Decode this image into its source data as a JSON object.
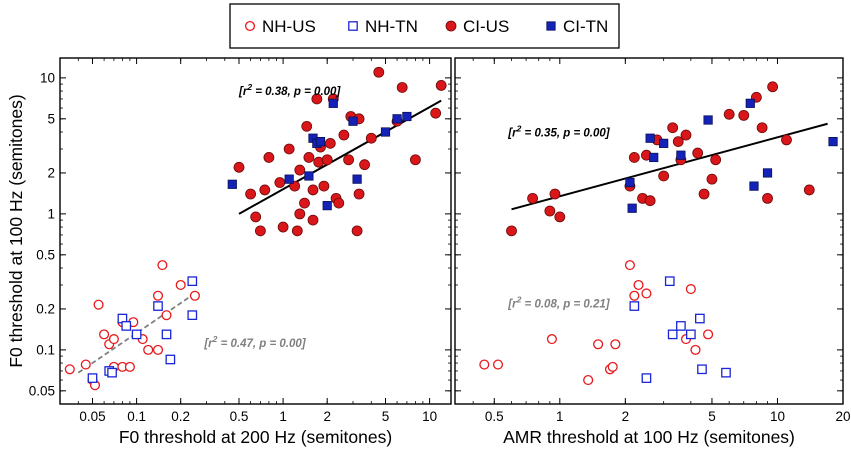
{
  "legend": {
    "items": [
      {
        "label": "NH-US",
        "marker": "open-circle",
        "color": "#e8191c"
      },
      {
        "label": "NH-TN",
        "marker": "open-square",
        "color": "#1a25d6"
      },
      {
        "label": "CI-US",
        "marker": "filled-circle",
        "color": "#d9161a"
      },
      {
        "label": "CI-TN",
        "marker": "filled-square",
        "color": "#1422b8"
      }
    ]
  },
  "shared_ylabel": "F0 threshold at 100 Hz (semitones)",
  "chart_data": [
    {
      "type": "scatter",
      "xscale": "log",
      "yscale": "log",
      "xlabel": "F0 threshold at 200 Hz (semitones)",
      "ylabel": "F0 threshold at 100 Hz (semitones)",
      "xlim": [
        0.03,
        14
      ],
      "ylim": [
        0.04,
        14
      ],
      "xticks": [
        0.05,
        0.1,
        0.2,
        0.5,
        1,
        2,
        5,
        10
      ],
      "xtick_labels": [
        "0.05",
        "0.1",
        "0.2",
        "0.5",
        "1",
        "2",
        "5",
        "10"
      ],
      "yticks": [
        0.05,
        0.1,
        0.2,
        0.5,
        1,
        2,
        5,
        10
      ],
      "ytick_labels": [
        "0.05",
        "0.1",
        "0.2",
        "0.5",
        "1",
        "2",
        "5",
        "10"
      ],
      "series": [
        {
          "name": "NH-US",
          "marker": "open-circle",
          "color": "#e8191c",
          "points": [
            [
              0.035,
              0.072
            ],
            [
              0.045,
              0.078
            ],
            [
              0.05,
              0.06
            ],
            [
              0.052,
              0.055
            ],
            [
              0.055,
              0.215
            ],
            [
              0.06,
              0.13
            ],
            [
              0.065,
              0.11
            ],
            [
              0.07,
              0.12
            ],
            [
              0.07,
              0.075
            ],
            [
              0.08,
              0.075
            ],
            [
              0.08,
              0.16
            ],
            [
              0.09,
              0.075
            ],
            [
              0.095,
              0.16
            ],
            [
              0.11,
              0.12
            ],
            [
              0.12,
              0.1
            ],
            [
              0.14,
              0.1
            ],
            [
              0.14,
              0.25
            ],
            [
              0.15,
              0.42
            ],
            [
              0.16,
              0.18
            ],
            [
              0.2,
              0.3
            ],
            [
              0.25,
              0.25
            ]
          ]
        },
        {
          "name": "NH-TN",
          "marker": "open-square",
          "color": "#1a25d6",
          "points": [
            [
              0.05,
              0.062
            ],
            [
              0.065,
              0.07
            ],
            [
              0.068,
              0.068
            ],
            [
              0.08,
              0.17
            ],
            [
              0.085,
              0.15
            ],
            [
              0.1,
              0.13
            ],
            [
              0.14,
              0.21
            ],
            [
              0.16,
              0.13
            ],
            [
              0.17,
              0.085
            ],
            [
              0.24,
              0.18
            ],
            [
              0.24,
              0.32
            ]
          ]
        },
        {
          "name": "CI-US",
          "marker": "filled-circle",
          "color": "#d9161a",
          "points": [
            [
              0.5,
              2.2
            ],
            [
              0.6,
              1.4
            ],
            [
              0.65,
              0.95
            ],
            [
              0.7,
              0.75
            ],
            [
              0.75,
              1.5
            ],
            [
              0.8,
              2.6
            ],
            [
              0.95,
              1.7
            ],
            [
              1.0,
              0.8
            ],
            [
              1.1,
              3.0
            ],
            [
              1.2,
              1.6
            ],
            [
              1.25,
              0.75
            ],
            [
              1.3,
              1.0
            ],
            [
              1.3,
              2.1
            ],
            [
              1.4,
              1.2
            ],
            [
              1.45,
              4.4
            ],
            [
              1.5,
              2.6
            ],
            [
              1.6,
              0.9
            ],
            [
              1.6,
              1.5
            ],
            [
              1.7,
              7.0
            ],
            [
              1.75,
              2.4
            ],
            [
              1.8,
              3.1
            ],
            [
              1.9,
              1.6
            ],
            [
              2.0,
              2.5
            ],
            [
              2.1,
              3.3
            ],
            [
              2.2,
              7.0
            ],
            [
              2.3,
              1.3
            ],
            [
              2.4,
              1.2
            ],
            [
              2.6,
              3.8
            ],
            [
              2.8,
              2.5
            ],
            [
              2.9,
              5.2
            ],
            [
              3.2,
              0.75
            ],
            [
              3.3,
              5.0
            ],
            [
              3.3,
              1.4
            ],
            [
              3.6,
              2.3
            ],
            [
              4.0,
              3.6
            ],
            [
              4.5,
              11
            ],
            [
              6.0,
              4.8
            ],
            [
              6.5,
              8.5
            ],
            [
              8.0,
              2.5
            ],
            [
              11,
              5.5
            ],
            [
              12,
              8.8
            ]
          ]
        },
        {
          "name": "CI-TN",
          "marker": "filled-square",
          "color": "#1422b8",
          "points": [
            [
              0.45,
              1.65
            ],
            [
              1.1,
              1.8
            ],
            [
              1.5,
              1.9
            ],
            [
              1.6,
              3.6
            ],
            [
              1.7,
              3.3
            ],
            [
              1.8,
              3.4
            ],
            [
              2.0,
              1.15
            ],
            [
              2.2,
              6.5
            ],
            [
              3.0,
              4.8
            ],
            [
              3.2,
              1.8
            ],
            [
              5.0,
              4.0
            ],
            [
              6.0,
              5.0
            ],
            [
              7.0,
              5.2
            ]
          ]
        }
      ],
      "fits": [
        {
          "style": "solid",
          "color": "#000000",
          "label": "r² = 0.38, p = 0.00",
          "x": [
            0.5,
            12
          ],
          "y": [
            1.0,
            6.8
          ]
        },
        {
          "style": "dashed",
          "color": "#808080",
          "label": "r² = 0.47, p = 0.00",
          "x": [
            0.04,
            0.25
          ],
          "y": [
            0.068,
            0.26
          ]
        }
      ],
      "annotations": [
        {
          "text_italic": "r",
          "sup": "2",
          "text_rest": " = 0.38, p = 0.00",
          "x": 0.5,
          "y": 7.5,
          "color": "#000000"
        },
        {
          "text_italic": "r",
          "sup": "2",
          "text_rest": " = 0.47, p = 0.00",
          "x": 0.29,
          "y": 0.105,
          "color": "#808080"
        }
      ]
    },
    {
      "type": "scatter",
      "xscale": "log",
      "yscale": "log",
      "xlabel": "AMR threshold at 100 Hz (semitones)",
      "ylabel": "",
      "xlim": [
        0.33,
        20
      ],
      "ylim": [
        0.04,
        14
      ],
      "xticks": [
        0.5,
        1,
        2,
        5,
        10,
        20
      ],
      "xtick_labels": [
        "0.5",
        "1",
        "2",
        "5",
        "10",
        "20"
      ],
      "yticks": [
        0.05,
        0.1,
        0.2,
        0.5,
        1,
        2,
        5,
        10
      ],
      "ytick_labels": [],
      "series": [
        {
          "name": "NH-US",
          "marker": "open-circle",
          "color": "#e8191c",
          "points": [
            [
              0.45,
              0.078
            ],
            [
              0.52,
              0.078
            ],
            [
              0.92,
              0.12
            ],
            [
              1.35,
              0.06
            ],
            [
              1.5,
              0.11
            ],
            [
              1.7,
              0.072
            ],
            [
              1.75,
              0.075
            ],
            [
              1.8,
              0.11
            ],
            [
              2.1,
              0.42
            ],
            [
              2.2,
              0.25
            ],
            [
              2.5,
              0.26
            ],
            [
              2.3,
              0.3
            ],
            [
              3.8,
              0.12
            ],
            [
              4.0,
              0.28
            ],
            [
              4.2,
              0.1
            ],
            [
              4.8,
              0.13
            ]
          ]
        },
        {
          "name": "NH-TN",
          "marker": "open-square",
          "color": "#1a25d6",
          "points": [
            [
              2.2,
              0.21
            ],
            [
              2.5,
              0.062
            ],
            [
              3.2,
              0.32
            ],
            [
              3.3,
              0.13
            ],
            [
              3.6,
              0.15
            ],
            [
              4.0,
              0.13
            ],
            [
              4.4,
              0.17
            ],
            [
              4.5,
              0.072
            ],
            [
              5.8,
              0.068
            ]
          ]
        },
        {
          "name": "CI-US",
          "marker": "filled-circle",
          "color": "#d9161a",
          "points": [
            [
              0.6,
              0.75
            ],
            [
              0.75,
              1.3
            ],
            [
              0.9,
              1.05
            ],
            [
              0.95,
              1.4
            ],
            [
              1.0,
              0.95
            ],
            [
              2.1,
              1.6
            ],
            [
              2.2,
              2.6
            ],
            [
              2.4,
              1.3
            ],
            [
              2.5,
              2.7
            ],
            [
              2.6,
              1.25
            ],
            [
              2.8,
              3.5
            ],
            [
              3.0,
              1.9
            ],
            [
              3.3,
              4.3
            ],
            [
              3.5,
              3.4
            ],
            [
              3.6,
              2.5
            ],
            [
              3.8,
              3.8
            ],
            [
              4.3,
              2.8
            ],
            [
              4.6,
              1.4
            ],
            [
              5.0,
              1.8
            ],
            [
              5.2,
              2.5
            ],
            [
              6.0,
              5.4
            ],
            [
              7.0,
              5.3
            ],
            [
              8.0,
              7.2
            ],
            [
              8.5,
              4.3
            ],
            [
              9.0,
              1.3
            ],
            [
              9.5,
              8.6
            ],
            [
              11,
              3.5
            ],
            [
              14,
              1.5
            ]
          ]
        },
        {
          "name": "CI-TN",
          "marker": "filled-square",
          "color": "#1422b8",
          "points": [
            [
              2.1,
              1.7
            ],
            [
              2.15,
              1.1
            ],
            [
              2.6,
              3.6
            ],
            [
              2.7,
              2.6
            ],
            [
              3.0,
              3.3
            ],
            [
              3.6,
              2.7
            ],
            [
              4.8,
              4.9
            ],
            [
              7.5,
              6.5
            ],
            [
              7.8,
              1.6
            ],
            [
              9.0,
              2.0
            ],
            [
              18,
              3.4
            ]
          ]
        }
      ],
      "fits": [
        {
          "style": "solid",
          "color": "#000000",
          "label": "r² = 0.35, p = 0.00",
          "x": [
            0.6,
            17
          ],
          "y": [
            1.08,
            4.6
          ]
        }
      ],
      "annotations": [
        {
          "text_italic": "r",
          "sup": "2",
          "text_rest": " = 0.35, p = 0.00",
          "x": 0.58,
          "y": 3.7,
          "color": "#000000"
        },
        {
          "text_italic": "r",
          "sup": "2",
          "text_rest": " = 0.08, p = 0.21",
          "x": 0.58,
          "y": 0.205,
          "color": "#808080"
        }
      ]
    }
  ]
}
